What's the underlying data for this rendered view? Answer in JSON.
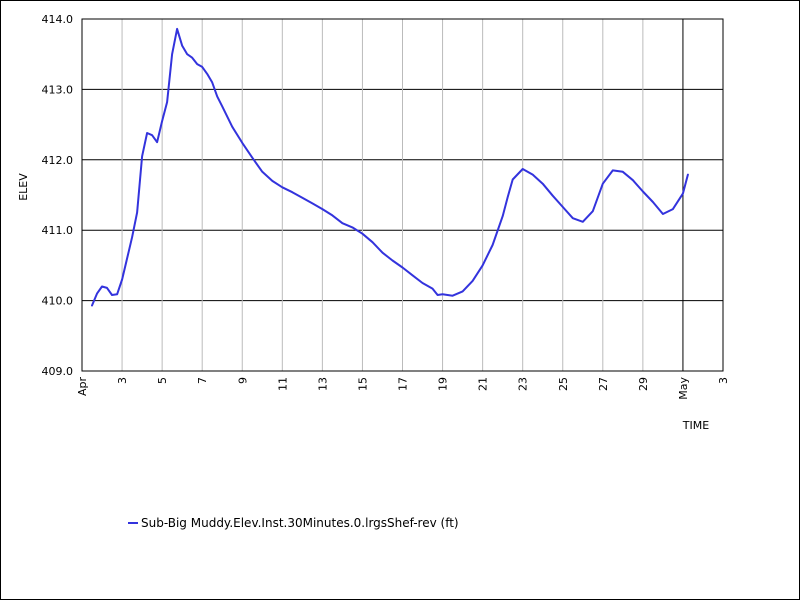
{
  "chart_data": {
    "type": "line",
    "ylabel": "ELEV",
    "xlabel": "TIME",
    "ylim": [
      409.0,
      414.0
    ],
    "yticks": [
      "409.0",
      "410.0",
      "411.0",
      "412.0",
      "413.0",
      "414.0"
    ],
    "xlim": [
      "2024-04-01",
      "2024-05-03"
    ],
    "xticks": [
      {
        "label": "Apr",
        "date": "2024-04-01"
      },
      {
        "label": "3",
        "date": "2024-04-03"
      },
      {
        "label": "5",
        "date": "2024-04-05"
      },
      {
        "label": "7",
        "date": "2024-04-07"
      },
      {
        "label": "9",
        "date": "2024-04-09"
      },
      {
        "label": "11",
        "date": "2024-04-11"
      },
      {
        "label": "13",
        "date": "2024-04-13"
      },
      {
        "label": "15",
        "date": "2024-04-15"
      },
      {
        "label": "17",
        "date": "2024-04-17"
      },
      {
        "label": "19",
        "date": "2024-04-19"
      },
      {
        "label": "21",
        "date": "2024-04-21"
      },
      {
        "label": "23",
        "date": "2024-04-23"
      },
      {
        "label": "25",
        "date": "2024-04-25"
      },
      {
        "label": "27",
        "date": "2024-04-27"
      },
      {
        "label": "29",
        "date": "2024-04-29"
      },
      {
        "label": "May",
        "date": "2024-05-01"
      },
      {
        "label": "3",
        "date": "2024-05-03"
      }
    ],
    "grid": {
      "horizontal": true,
      "vertical": true
    },
    "legend_position": "bottom-left",
    "series": [
      {
        "name": "Sub-Big Muddy.Elev.Inst.30Minutes.0.lrgsShef-rev (ft)",
        "color": "#3333dd",
        "x": [
          "2024-04-01T12:00",
          "2024-04-01T18:00",
          "2024-04-02T00:00",
          "2024-04-02T06:00",
          "2024-04-02T12:00",
          "2024-04-02T18:00",
          "2024-04-03T00:00",
          "2024-04-03T06:00",
          "2024-04-03T12:00",
          "2024-04-03T18:00",
          "2024-04-04T00:00",
          "2024-04-04T06:00",
          "2024-04-04T12:00",
          "2024-04-04T18:00",
          "2024-04-05T00:00",
          "2024-04-05T06:00",
          "2024-04-05T12:00",
          "2024-04-05T18:00",
          "2024-04-06T00:00",
          "2024-04-06T06:00",
          "2024-04-06T12:00",
          "2024-04-06T18:00",
          "2024-04-07T00:00",
          "2024-04-07T06:00",
          "2024-04-07T12:00",
          "2024-04-07T18:00",
          "2024-04-08T00:00",
          "2024-04-08T12:00",
          "2024-04-09T00:00",
          "2024-04-09T12:00",
          "2024-04-10T00:00",
          "2024-04-10T12:00",
          "2024-04-11T00:00",
          "2024-04-11T12:00",
          "2024-04-12T00:00",
          "2024-04-12T12:00",
          "2024-04-13T00:00",
          "2024-04-13T12:00",
          "2024-04-14T00:00",
          "2024-04-14T12:00",
          "2024-04-15T00:00",
          "2024-04-15T12:00",
          "2024-04-16T00:00",
          "2024-04-16T12:00",
          "2024-04-17T00:00",
          "2024-04-17T12:00",
          "2024-04-18T00:00",
          "2024-04-18T12:00",
          "2024-04-18T18:00",
          "2024-04-19T00:00",
          "2024-04-19T12:00",
          "2024-04-20T00:00",
          "2024-04-20T12:00",
          "2024-04-21T00:00",
          "2024-04-21T12:00",
          "2024-04-22T00:00",
          "2024-04-22T06:00",
          "2024-04-22T12:00",
          "2024-04-23T00:00",
          "2024-04-23T12:00",
          "2024-04-24T00:00",
          "2024-04-24T12:00",
          "2024-04-25T00:00",
          "2024-04-25T12:00",
          "2024-04-26T00:00",
          "2024-04-26T12:00",
          "2024-04-27T00:00",
          "2024-04-27T12:00",
          "2024-04-28T00:00",
          "2024-04-28T12:00",
          "2024-04-29T00:00",
          "2024-04-29T12:00",
          "2024-04-30T00:00",
          "2024-04-30T12:00",
          "2024-05-01T00:00",
          "2024-05-01T06:00"
        ],
        "values": [
          409.93,
          410.1,
          410.2,
          410.18,
          410.08,
          410.09,
          410.3,
          410.6,
          410.9,
          411.25,
          412.05,
          412.38,
          412.35,
          412.25,
          412.55,
          412.82,
          413.5,
          413.86,
          413.62,
          413.5,
          413.45,
          413.36,
          413.32,
          413.22,
          413.1,
          412.9,
          412.76,
          412.47,
          412.24,
          412.03,
          411.83,
          411.7,
          411.61,
          411.54,
          411.46,
          411.38,
          411.3,
          411.21,
          411.1,
          411.04,
          410.95,
          410.83,
          410.68,
          410.57,
          410.47,
          410.36,
          410.25,
          410.17,
          410.08,
          410.09,
          410.07,
          410.13,
          410.28,
          410.5,
          410.79,
          411.2,
          411.47,
          411.72,
          411.87,
          411.79,
          411.66,
          411.49,
          411.33,
          411.17,
          411.12,
          411.27,
          411.66,
          411.85,
          411.83,
          411.71,
          411.55,
          411.4,
          411.23,
          411.3,
          411.52,
          411.79
        ]
      }
    ]
  }
}
